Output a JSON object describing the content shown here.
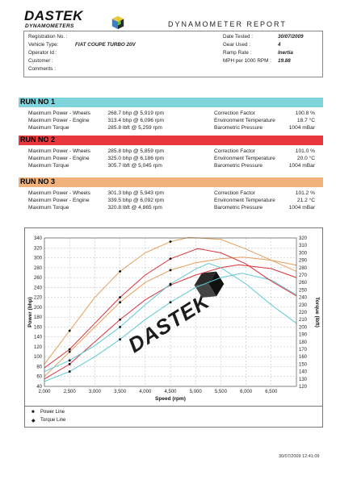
{
  "header": {
    "logo_main": "DASTEK",
    "logo_sub": "DYNAMOMETERS",
    "report_title": "DYNAMOMETER REPORT"
  },
  "info": {
    "left": [
      {
        "label": "Registration No. :",
        "value": ""
      },
      {
        "label": "Vehicle Type:",
        "value": "FIAT COUPE TURBO 20V"
      },
      {
        "label": "Operator Id :",
        "value": ""
      },
      {
        "label": "Customer :",
        "value": ""
      },
      {
        "label": "Comments :",
        "value": ""
      }
    ],
    "right": [
      {
        "label": "Date Tested :",
        "value": "30/07/2009"
      },
      {
        "label": "Gear Used :",
        "value": "4"
      },
      {
        "label": "Ramp Rate :",
        "value": "Inertia"
      },
      {
        "label": "MPH per 1000 RPM :",
        "value": "19.88"
      }
    ]
  },
  "runs": [
    {
      "title": "RUN NO 1",
      "color": "#7fd4dc",
      "rows": [
        {
          "label": "Maximum Power - Wheels",
          "value": "268.7",
          "desc": "bhp @ 5,919 rpm",
          "f_label": "Correction Factor",
          "f_val": "100.8 %"
        },
        {
          "label": "Maximum Power - Engine",
          "value": "313.4",
          "desc": "bhp @ 6,096 rpm",
          "f_label": "Environment Temperature",
          "f_val": "18.7 °C"
        },
        {
          "label": "Maximum Torque",
          "value": "285.8",
          "desc": "lbft @ 5,259 rpm",
          "f_label": "Barometric Pressure",
          "f_val": "1004 mBar"
        }
      ]
    },
    {
      "title": "RUN NO 2",
      "color": "#e8373d",
      "rows": [
        {
          "label": "Maximum Power - Wheels",
          "value": "285.8",
          "desc": "bhp @ 5,859 rpm",
          "f_label": "Correction Factor",
          "f_val": "101.0 %"
        },
        {
          "label": "Maximum Power - Engine",
          "value": "325.0",
          "desc": "bhp @ 6,186 rpm",
          "f_label": "Environment Temperature",
          "f_val": "20.0 °C"
        },
        {
          "label": "Maximum Torque",
          "value": "305.7",
          "desc": "lbft @ 5,045 rpm",
          "f_label": "Barometric Pressure",
          "f_val": "1004 mBar"
        }
      ]
    },
    {
      "title": "RUN NO 3",
      "color": "#f0b27a",
      "rows": [
        {
          "label": "Maximum Power - Wheels",
          "value": "301.3",
          "desc": "bhp @ 5,943 rpm",
          "f_label": "Correction Factor",
          "f_val": "101.2 %"
        },
        {
          "label": "Maximum Power - Engine",
          "value": "339.5",
          "desc": "bhp @ 6,092 rpm",
          "f_label": "Environment Temperature",
          "f_val": "21.2 °C"
        },
        {
          "label": "Maximum Torque",
          "value": "320.8",
          "desc": "lbft @ 4,865 rpm",
          "f_label": "Barometric Pressure",
          "f_val": "1004 mBar"
        }
      ]
    }
  ],
  "chart_data": {
    "type": "line",
    "xlabel": "Speed (rpm)",
    "ylabel": "Power (bhp)",
    "y2label": "Torque (lbft)",
    "xlim": [
      2000,
      7000
    ],
    "ylim": [
      40,
      340
    ],
    "y2lim": [
      120,
      320
    ],
    "xticks": [
      "2,000",
      "2,500",
      "3,000",
      "3,500",
      "4,000",
      "4,500",
      "5,000",
      "5,500",
      "6,000",
      "6,500"
    ],
    "xtick_values": [
      2000,
      2500,
      3000,
      3500,
      4000,
      4500,
      5000,
      5500,
      6000,
      6500
    ],
    "yticks": [
      40,
      60,
      80,
      100,
      120,
      140,
      160,
      180,
      200,
      220,
      240,
      260,
      280,
      300,
      320,
      340
    ],
    "y2ticks": [
      120,
      130,
      140,
      150,
      160,
      170,
      180,
      190,
      200,
      210,
      220,
      230,
      240,
      250,
      260,
      270,
      280,
      290,
      300,
      310,
      320
    ],
    "grid": true,
    "watermark": "DASTEK",
    "series": [
      {
        "kind": "power",
        "run": 1,
        "color": "#5ec8d4",
        "x": [
          2000,
          2500,
          3000,
          3500,
          4000,
          4500,
          5000,
          5500,
          5919,
          6500,
          7000
        ],
        "y": [
          50,
          70,
          100,
          135,
          175,
          210,
          240,
          260,
          268.7,
          255,
          225
        ]
      },
      {
        "kind": "power",
        "run": 2,
        "color": "#d9323a",
        "x": [
          2000,
          2500,
          3000,
          3500,
          4000,
          4500,
          5000,
          5500,
          5859,
          6500,
          7000
        ],
        "y": [
          55,
          85,
          130,
          175,
          215,
          245,
          265,
          280,
          285.8,
          278,
          260
        ]
      },
      {
        "kind": "power",
        "run": 3,
        "color": "#e69d5a",
        "x": [
          2000,
          2500,
          3000,
          3500,
          4000,
          4500,
          5000,
          5500,
          5943,
          6500,
          7000
        ],
        "y": [
          60,
          110,
          160,
          210,
          250,
          275,
          290,
          298,
          301.3,
          295,
          285
        ]
      },
      {
        "kind": "torque",
        "run": 1,
        "color": "#5ec8d4",
        "x": [
          2000,
          2500,
          3000,
          3500,
          4000,
          4500,
          5000,
          5259,
          5500,
          6000,
          6500,
          7000
        ],
        "y": [
          140,
          155,
          175,
          200,
          230,
          258,
          278,
          285.8,
          280,
          258,
          230,
          205
        ]
      },
      {
        "kind": "torque",
        "run": 2,
        "color": "#d9323a",
        "x": [
          2000,
          2500,
          3000,
          3500,
          4000,
          4500,
          5045,
          5500,
          6000,
          6500,
          7000
        ],
        "y": [
          145,
          170,
          205,
          240,
          270,
          292,
          305.7,
          300,
          285,
          262,
          242
        ]
      },
      {
        "kind": "torque",
        "run": 3,
        "color": "#e69d5a",
        "x": [
          2000,
          2500,
          3000,
          3500,
          4000,
          4500,
          4865,
          5500,
          6000,
          6500,
          7000
        ],
        "y": [
          150,
          195,
          240,
          275,
          300,
          315,
          320.8,
          318,
          305,
          290,
          275
        ]
      }
    ]
  },
  "legend": {
    "power_line": "Power Line",
    "torque_line": "Torque Line"
  },
  "footer": {
    "timestamp": "30/07/2009 12:41:09"
  }
}
